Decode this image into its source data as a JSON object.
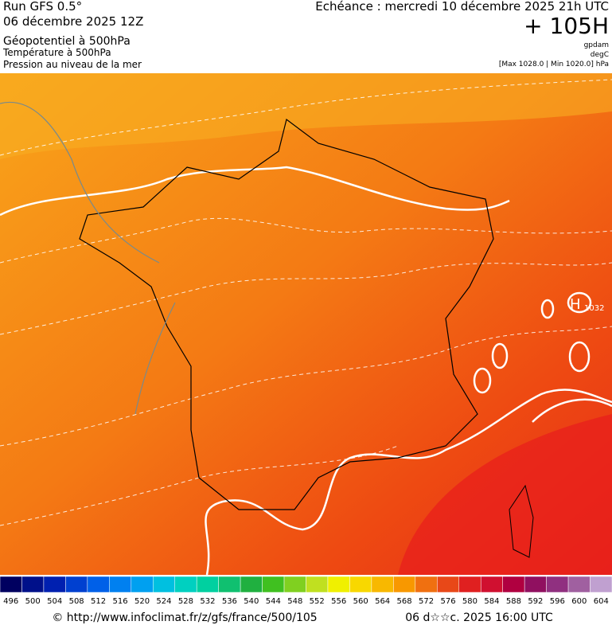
{
  "header": {
    "run": "Run GFS 0.5°",
    "run_date": "06 décembre 2025 12Z",
    "layer1": "Géopotentiel à 500hPa",
    "layer2": "Température à 500hPa",
    "layer3": "Pression au niveau de la mer",
    "echeance": "Echéance : mercredi 10 décembre 2025 21h UTC",
    "lead": "+ 105H",
    "unit1": "gpdam",
    "unit2": "degC",
    "range": "[Max 1028.0 | Min 1020.0] hPa"
  },
  "map": {
    "high_symbol": "H",
    "high_value": "1032"
  },
  "colorbar": {
    "labels": [
      496,
      500,
      504,
      508,
      512,
      516,
      520,
      524,
      528,
      532,
      536,
      540,
      544,
      548,
      552,
      556,
      560,
      564,
      568,
      572,
      576,
      580,
      584,
      588,
      592,
      596,
      600,
      604
    ],
    "colors": [
      "#000060",
      "#00108a",
      "#0020b0",
      "#0040d0",
      "#0060e8",
      "#0080f0",
      "#00a0f0",
      "#00c0e0",
      "#00d0c0",
      "#00d0a0",
      "#10c070",
      "#20b040",
      "#40c020",
      "#80d020",
      "#c0e020",
      "#f0f000",
      "#f8d800",
      "#f8b800",
      "#f89800",
      "#f07010",
      "#e84818",
      "#e02020",
      "#d01030",
      "#b00040",
      "#901060",
      "#903080",
      "#a060a0",
      "#c0a0d0"
    ]
  },
  "footer": {
    "url": "© http://www.infoclimat.fr/z/gfs/france/500/105",
    "date": "06 d☆☆c. 2025 16:00 UTC"
  }
}
